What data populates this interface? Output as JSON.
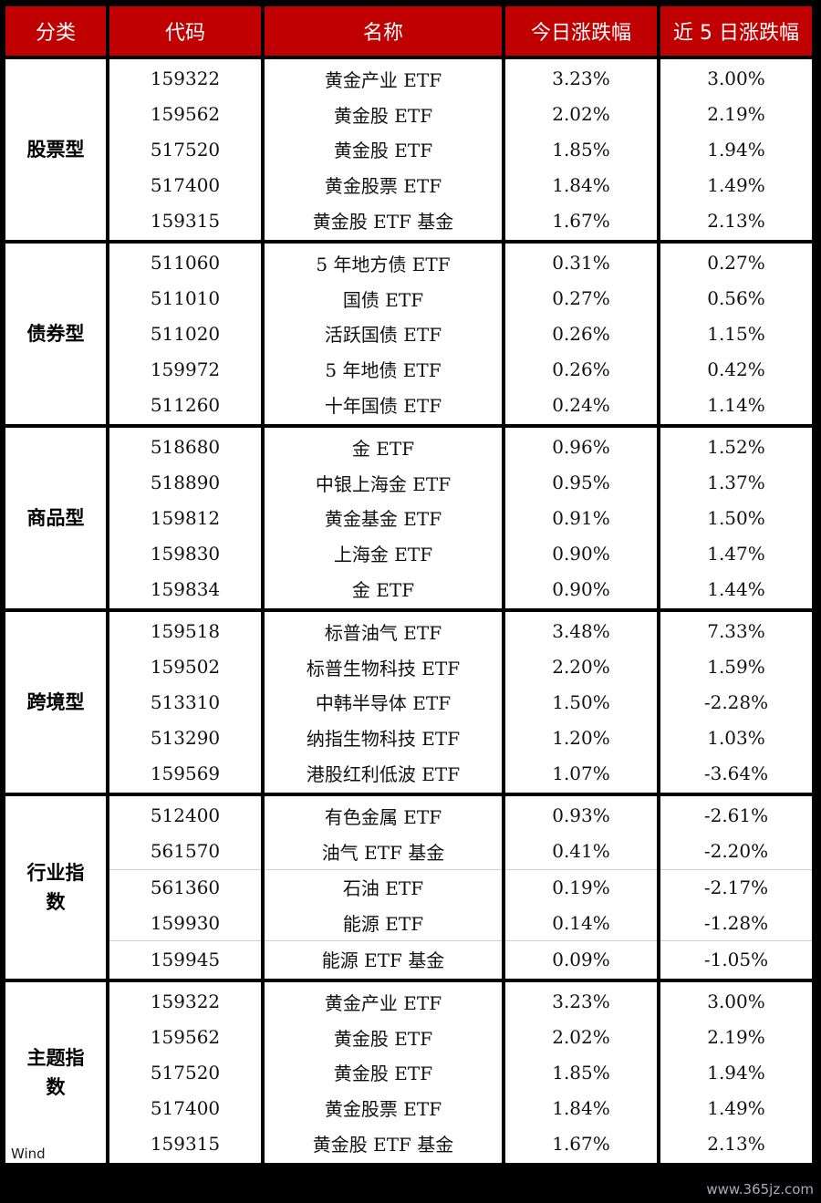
{
  "headers": [
    "分类",
    "代码",
    "名称",
    "今日涨跌幅",
    "近 5 日涨跌幅"
  ],
  "groups": [
    {
      "category": "股票型",
      "rows": [
        {
          "code": "159322",
          "name": "黄金产业 ETF",
          "today": "3.23%",
          "five_day": "3.00%"
        },
        {
          "code": "159562",
          "name": "黄金股 ETF",
          "today": "2.02%",
          "five_day": "2.19%"
        },
        {
          "code": "517520",
          "name": "黄金股 ETF",
          "today": "1.85%",
          "five_day": "1.94%"
        },
        {
          "code": "517400",
          "name": "黄金股票 ETF",
          "today": "1.84%",
          "five_day": "1.49%"
        },
        {
          "code": "159315",
          "name": "黄金股 ETF 基金",
          "today": "1.67%",
          "five_day": "2.13%"
        }
      ]
    },
    {
      "category": "债券型",
      "rows": [
        {
          "code": "511060",
          "name": "5 年地方债 ETF",
          "today": "0.31%",
          "five_day": "0.27%"
        },
        {
          "code": "511010",
          "name": "国债 ETF",
          "today": "0.27%",
          "five_day": "0.56%"
        },
        {
          "code": "511020",
          "name": "活跃国债 ETF",
          "today": "0.26%",
          "five_day": "1.15%"
        },
        {
          "code": "159972",
          "name": "5 年地债 ETF",
          "today": "0.26%",
          "five_day": "0.42%"
        },
        {
          "code": "511260",
          "name": "十年国债 ETF",
          "today": "0.24%",
          "five_day": "1.14%"
        }
      ]
    },
    {
      "category": "商品型",
      "rows": [
        {
          "code": "518680",
          "name": "金 ETF",
          "today": "0.96%",
          "five_day": "1.52%"
        },
        {
          "code": "518890",
          "name": "中银上海金 ETF",
          "today": "0.95%",
          "five_day": "1.37%"
        },
        {
          "code": "159812",
          "name": "黄金基金 ETF",
          "today": "0.91%",
          "five_day": "1.50%"
        },
        {
          "code": "159830",
          "name": "上海金 ETF",
          "today": "0.90%",
          "five_day": "1.47%"
        },
        {
          "code": "159834",
          "name": "金 ETF",
          "today": "0.90%",
          "five_day": "1.44%"
        }
      ]
    },
    {
      "category": "跨境型",
      "rows": [
        {
          "code": "159518",
          "name": "标普油气 ETF",
          "today": "3.48%",
          "five_day": "7.33%"
        },
        {
          "code": "159502",
          "name": "标普生物科技 ETF",
          "today": "2.20%",
          "five_day": "1.59%"
        },
        {
          "code": "513310",
          "name": "中韩半导体 ETF",
          "today": "1.50%",
          "five_day": "-2.28%"
        },
        {
          "code": "513290",
          "name": "纳指生物科技 ETF",
          "today": "1.20%",
          "five_day": "1.03%"
        },
        {
          "code": "159569",
          "name": "港股红利低波 ETF",
          "today": "1.07%",
          "five_day": "-3.64%"
        }
      ]
    },
    {
      "category": "行业指数",
      "rows": [
        {
          "code": "512400",
          "name": "有色金属 ETF",
          "today": "0.93%",
          "five_day": "-2.61%"
        },
        {
          "code": "561570",
          "name": "油气 ETF 基金",
          "today": "0.41%",
          "five_day": "-2.20%"
        },
        {
          "code": "561360",
          "name": "石油 ETF",
          "today": "0.19%",
          "five_day": "-2.17%",
          "sep": true
        },
        {
          "code": "159930",
          "name": "能源 ETF",
          "today": "0.14%",
          "five_day": "-1.28%"
        },
        {
          "code": "159945",
          "name": "能源 ETF 基金",
          "today": "0.09%",
          "five_day": "-1.05%",
          "sep": true
        }
      ]
    },
    {
      "category": "主题指数",
      "rows": [
        {
          "code": "159322",
          "name": "黄金产业 ETF",
          "today": "3.23%",
          "five_day": "3.00%"
        },
        {
          "code": "159562",
          "name": "黄金股 ETF",
          "today": "2.02%",
          "five_day": "2.19%"
        },
        {
          "code": "517520",
          "name": "黄金股 ETF",
          "today": "1.85%",
          "five_day": "1.94%"
        },
        {
          "code": "517400",
          "name": "黄金股票 ETF",
          "today": "1.84%",
          "five_day": "1.49%"
        },
        {
          "code": "159315",
          "name": "黄金股 ETF 基金",
          "today": "1.67%",
          "five_day": "2.13%"
        }
      ]
    }
  ],
  "footer_note": "Wind",
  "watermark": "www.365jz.com"
}
